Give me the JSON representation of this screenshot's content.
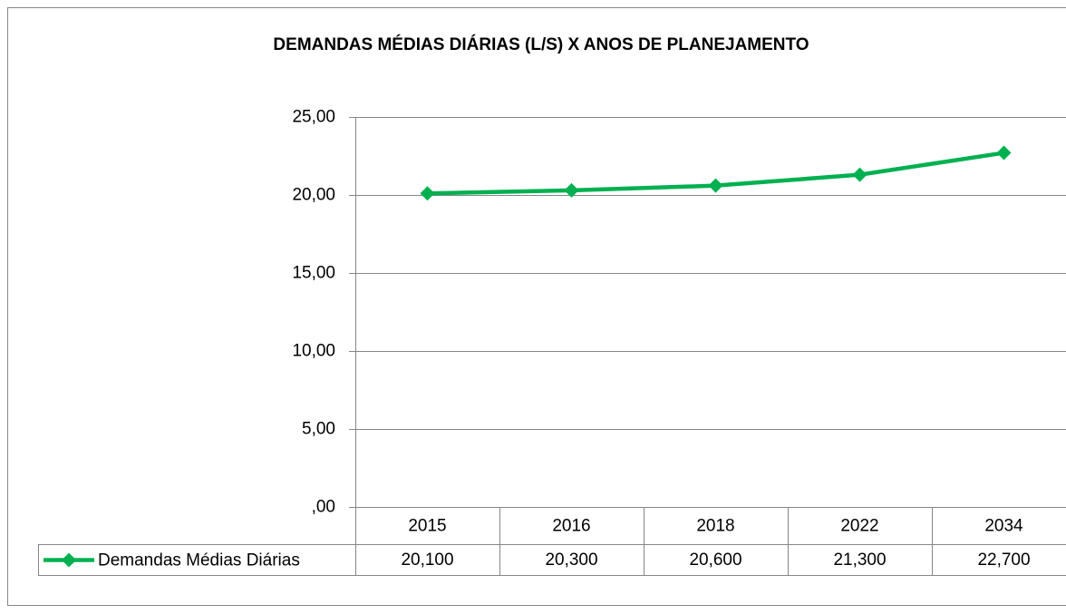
{
  "chart_data": {
    "type": "line",
    "title": "DEMANDAS MÉDIAS DIÁRIAS (L/S) X ANOS DE PLANEJAMENTO",
    "categories": [
      "2015",
      "2016",
      "2018",
      "2022",
      "2034"
    ],
    "series": [
      {
        "name": "Demandas Médias Diárias",
        "color": "#00b050",
        "values": [
          20.1,
          20.3,
          20.6,
          21.3,
          22.7
        ],
        "value_labels": [
          "20,100",
          "20,300",
          "20,600",
          "21,300",
          "22,700"
        ]
      }
    ],
    "ylim": [
      0,
      25
    ],
    "yticks": [
      {
        "value": 0,
        "label": ",00"
      },
      {
        "value": 5,
        "label": "5,00"
      },
      {
        "value": 10,
        "label": "10,00"
      },
      {
        "value": 15,
        "label": "15,00"
      },
      {
        "value": 20,
        "label": "20,00"
      },
      {
        "value": 25,
        "label": "25,00"
      }
    ],
    "grid": true,
    "data_table": true
  }
}
